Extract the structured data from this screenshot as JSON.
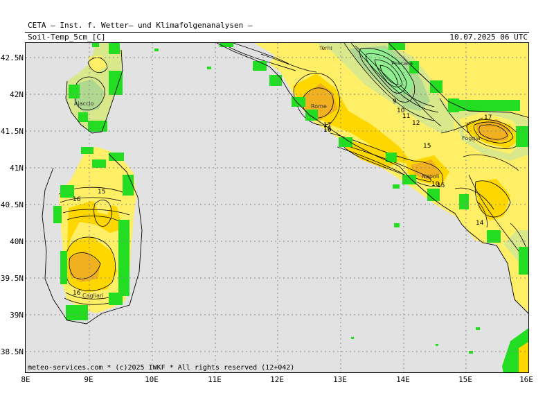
{
  "header": {
    "title": "CETA — Inst. f. Wetter— und Klimafolgenanalysen —",
    "field": "Soil-Temp_5cm_[C]",
    "valid_time": "10.07.2025 06 UTC"
  },
  "axes": {
    "lat_labels": [
      "42.5N",
      "42N",
      "41.5N",
      "41N",
      "40.5N",
      "40N",
      "39.5N",
      "39N",
      "38.5N"
    ],
    "lon_labels": [
      "8E",
      "9E",
      "10E",
      "11E",
      "12E",
      "13E",
      "14E",
      "15E",
      "16E"
    ]
  },
  "cities": [
    "Terni",
    "Pescara",
    "Ajaccio",
    "Rome",
    "Foggia",
    "Napoli",
    "Cagliari"
  ],
  "contour_labels": [
    "9",
    "10",
    "11",
    "12",
    "15",
    "17",
    "16",
    "15",
    "10",
    "14",
    "16",
    "15",
    "16",
    "17",
    "16"
  ],
  "footer": {
    "copyright": "meteo-services.com * (c)2025 IWKF * All rights reserved (12+042)"
  },
  "colors": {
    "sea": "#e2e2e2",
    "no_data": "#22dd22",
    "cool_green": "#90ee90",
    "mid_green": "#b0d890",
    "yellow_green": "#d8e88a",
    "light_yellow": "#ffef66",
    "yellow": "#ffd700",
    "orange": "#f0b020"
  }
}
